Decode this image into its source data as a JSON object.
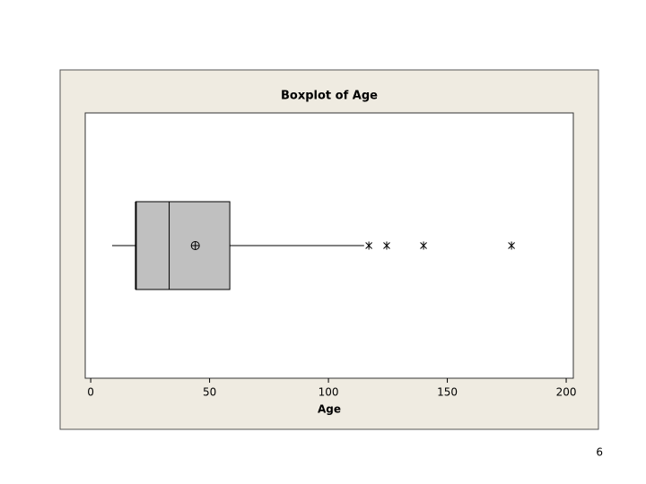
{
  "chart_data": {
    "type": "boxplot",
    "title": "Boxplot of Age",
    "x_label": "Age",
    "whisker_low": 9,
    "q1": 19,
    "median": 33,
    "q3": 58.5,
    "whisker_high": 115,
    "mean": 44,
    "outliers": [
      117,
      124.5,
      140,
      177
    ],
    "xlim": [
      -2.3,
      203
    ],
    "xticks": [
      0,
      50,
      100,
      150,
      200
    ],
    "box_color": "#c0c0c0",
    "panel_color": "#efebe1"
  },
  "page_number": "6"
}
